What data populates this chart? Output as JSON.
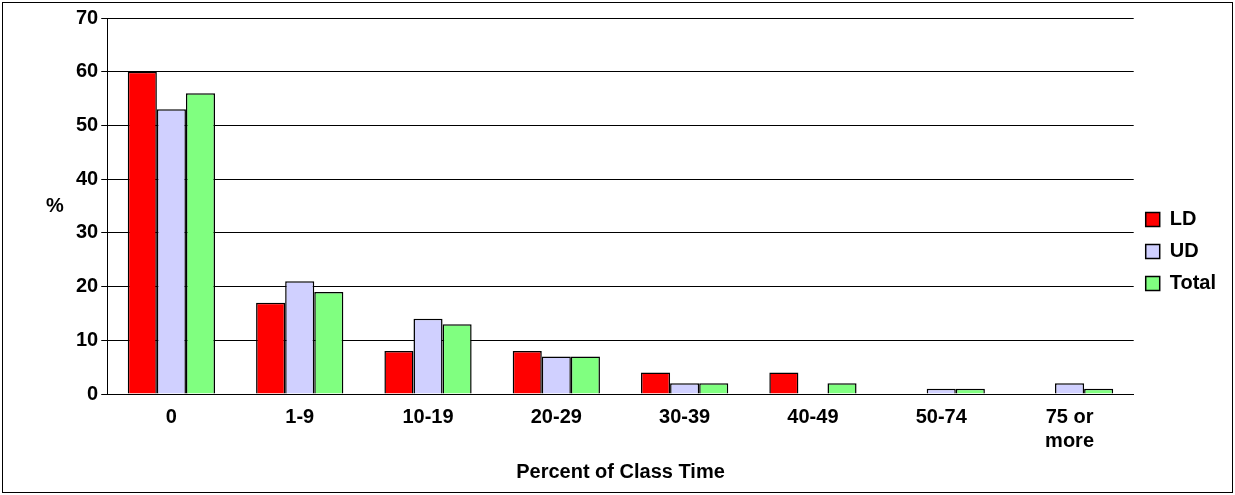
{
  "chart_data": {
    "type": "bar",
    "xlabel": "Percent of Class Time",
    "ylabel": "%",
    "categories": [
      "0",
      "1-9",
      "10-19",
      "20-29",
      "30-39",
      "40-49",
      "50-74",
      "75 or more"
    ],
    "series": [
      {
        "name": "LD",
        "color": "#ff0000",
        "values": [
          60,
          17,
          8,
          8,
          4,
          4,
          0,
          0
        ]
      },
      {
        "name": "UD",
        "color": "#d0d0ff",
        "values": [
          53,
          21,
          14,
          7,
          2,
          0,
          1,
          2
        ]
      },
      {
        "name": "Total",
        "color": "#80ff80",
        "values": [
          56,
          19,
          13,
          7,
          2,
          2,
          1,
          1
        ]
      }
    ],
    "ylim": [
      0,
      70
    ],
    "yticks": [
      0,
      10,
      20,
      30,
      40,
      50,
      60,
      70
    ],
    "grid": "y",
    "legend": "right"
  }
}
